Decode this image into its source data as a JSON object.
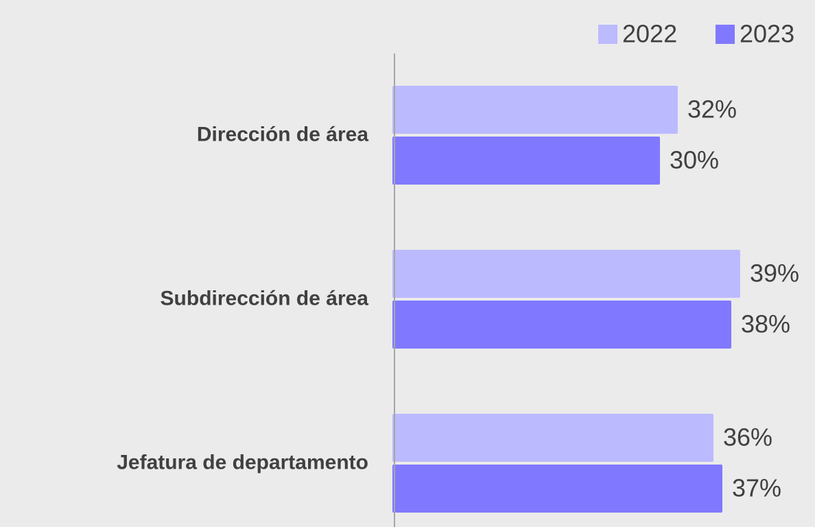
{
  "chart_data": {
    "type": "bar",
    "orientation": "horizontal",
    "categories": [
      "Dirección de área",
      "Subdirección de área",
      "Jefatura de departamento"
    ],
    "series": [
      {
        "name": "2022",
        "color": "#bcbaff",
        "values": [
          32,
          39,
          36
        ],
        "value_labels": [
          "32%",
          "39%",
          "36%"
        ]
      },
      {
        "name": "2023",
        "color": "#8079ff",
        "values": [
          30,
          38,
          37
        ],
        "value_labels": [
          "30%",
          "38%",
          "37%"
        ]
      }
    ],
    "legend": "top-right"
  }
}
